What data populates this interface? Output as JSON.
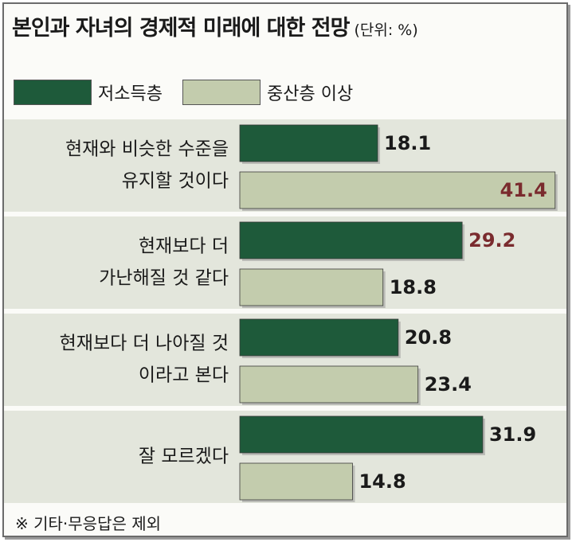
{
  "title": "본인과 자녀의 경제적 미래에 대한 전망",
  "unit": "(단위: %)",
  "footnote": "※ 기타·무응답은 제외",
  "colors": {
    "low": "#1e5a3a",
    "mid": "#c3ccad",
    "highlight": "#7a2b2e",
    "text": "#1a1a1a",
    "group_bg": "#e3e6dc"
  },
  "chart_data": {
    "type": "bar",
    "orientation": "horizontal",
    "title": "본인과 자녀의 경제적 미래에 대한 전망",
    "unit": "(단위: %)",
    "legend_position": "top-left",
    "grid": false,
    "categories": [
      [
        "현재와 비슷한 수준을",
        "유지할 것이다"
      ],
      [
        "현재보다 더",
        "가난해질 것 같다"
      ],
      [
        "현재보다 더 나아질 것",
        "이라고 본다"
      ],
      [
        "잘 모르겠다"
      ]
    ],
    "series": [
      {
        "name": "저소득층",
        "values": [
          18.1,
          29.2,
          20.8,
          31.9
        ],
        "highlight": [
          false,
          true,
          false,
          false
        ]
      },
      {
        "name": "중산층 이상",
        "values": [
          41.4,
          18.8,
          23.4,
          14.8
        ],
        "highlight": [
          true,
          false,
          false,
          false
        ]
      }
    ],
    "value_labels": [
      [
        "18.1",
        "29.2",
        "20.8",
        "31.9"
      ],
      [
        "41.4",
        "18.8",
        "23.4",
        "14.8"
      ]
    ],
    "xlim": [
      0,
      45
    ]
  }
}
